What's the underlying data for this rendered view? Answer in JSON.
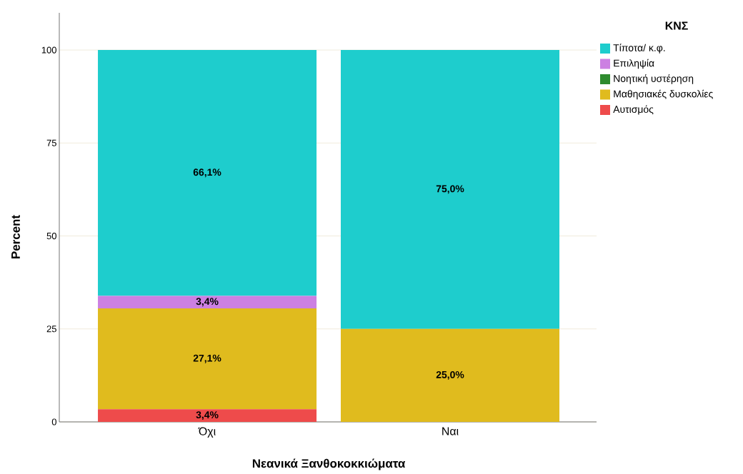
{
  "chart_data": {
    "type": "bar",
    "stacked": true,
    "xlabel": "Νεανικά Ξανθοκοκκιώματα",
    "ylabel": "Percent",
    "legend_title": "ΚΝΣ",
    "categories": [
      "Όχι",
      "Ναι"
    ],
    "series": [
      {
        "name": "Αυτισμός",
        "color": "#ee4b4b",
        "values": [
          3.4,
          0
        ],
        "value_labels": [
          "3,4%",
          null
        ]
      },
      {
        "name": "Μαθησιακές δυσκολίες",
        "color": "#e0bb1e",
        "values": [
          27.1,
          25.0
        ],
        "value_labels": [
          "27,1%",
          "25,0%"
        ]
      },
      {
        "name": "Νοητική υστέρηση",
        "color": "#2e8b2e",
        "values": [
          0,
          0
        ],
        "value_labels": [
          null,
          null
        ]
      },
      {
        "name": "Επιληψία",
        "color": "#cc80e2",
        "values": [
          3.4,
          0
        ],
        "value_labels": [
          "3,4%",
          null
        ]
      },
      {
        "name": "Τίποτα/ κ.φ.",
        "color": "#1ecdcd",
        "values": [
          66.1,
          75.0
        ],
        "value_labels": [
          "66,1%",
          "75,0%"
        ]
      }
    ],
    "ylim": [
      0,
      110
    ],
    "yticks": [
      0,
      25,
      50,
      75,
      100
    ],
    "grid": "y",
    "legend": "top right"
  }
}
